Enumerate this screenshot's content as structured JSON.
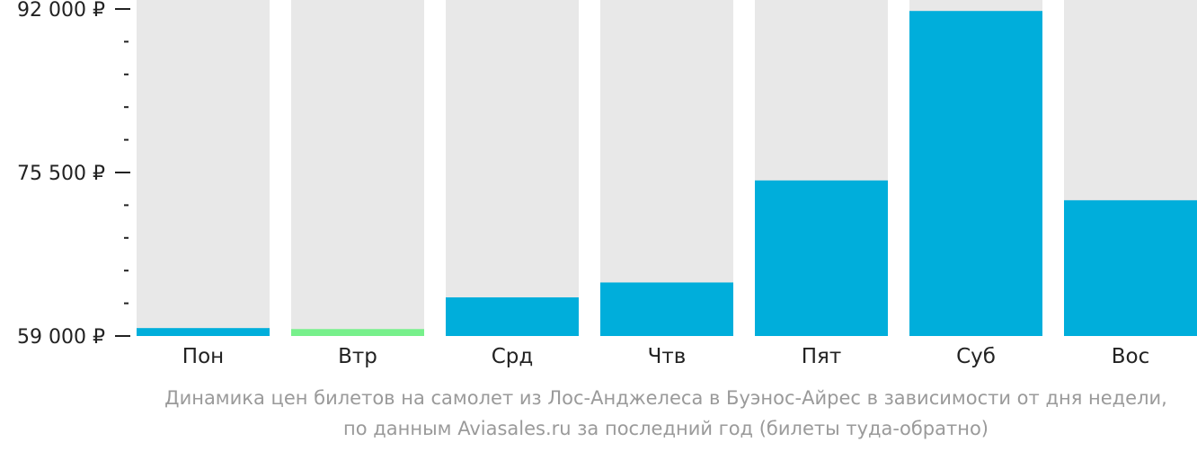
{
  "chart_data": {
    "type": "bar",
    "categories": [
      "Пон",
      "Втр",
      "Срд",
      "Чтв",
      "Пят",
      "Суб",
      "Вос"
    ],
    "values": [
      59800,
      59700,
      62900,
      64400,
      74700,
      91800,
      72700
    ],
    "highlight_index": 1,
    "ylim": [
      59000,
      92000
    ],
    "yticks": [
      {
        "value": 59000,
        "label": "59 000 ₽"
      },
      {
        "value": 75500,
        "label": "75 500 ₽"
      },
      {
        "value": 92000,
        "label": "92 000 ₽"
      }
    ],
    "minor_ticks_per_interval": 4,
    "colors": {
      "bar": "#00aedb",
      "highlight": "#77f08b",
      "background_column": "#e8e8e8",
      "axis": "#222222"
    }
  },
  "caption": {
    "line1": "Динамика цен билетов на самолет из Лос-Анджелеса в Буэнос-Айрес в зависимости от дня недели,",
    "line2": "по данным Aviasales.ru за последний год (билеты туда-обратно)"
  }
}
